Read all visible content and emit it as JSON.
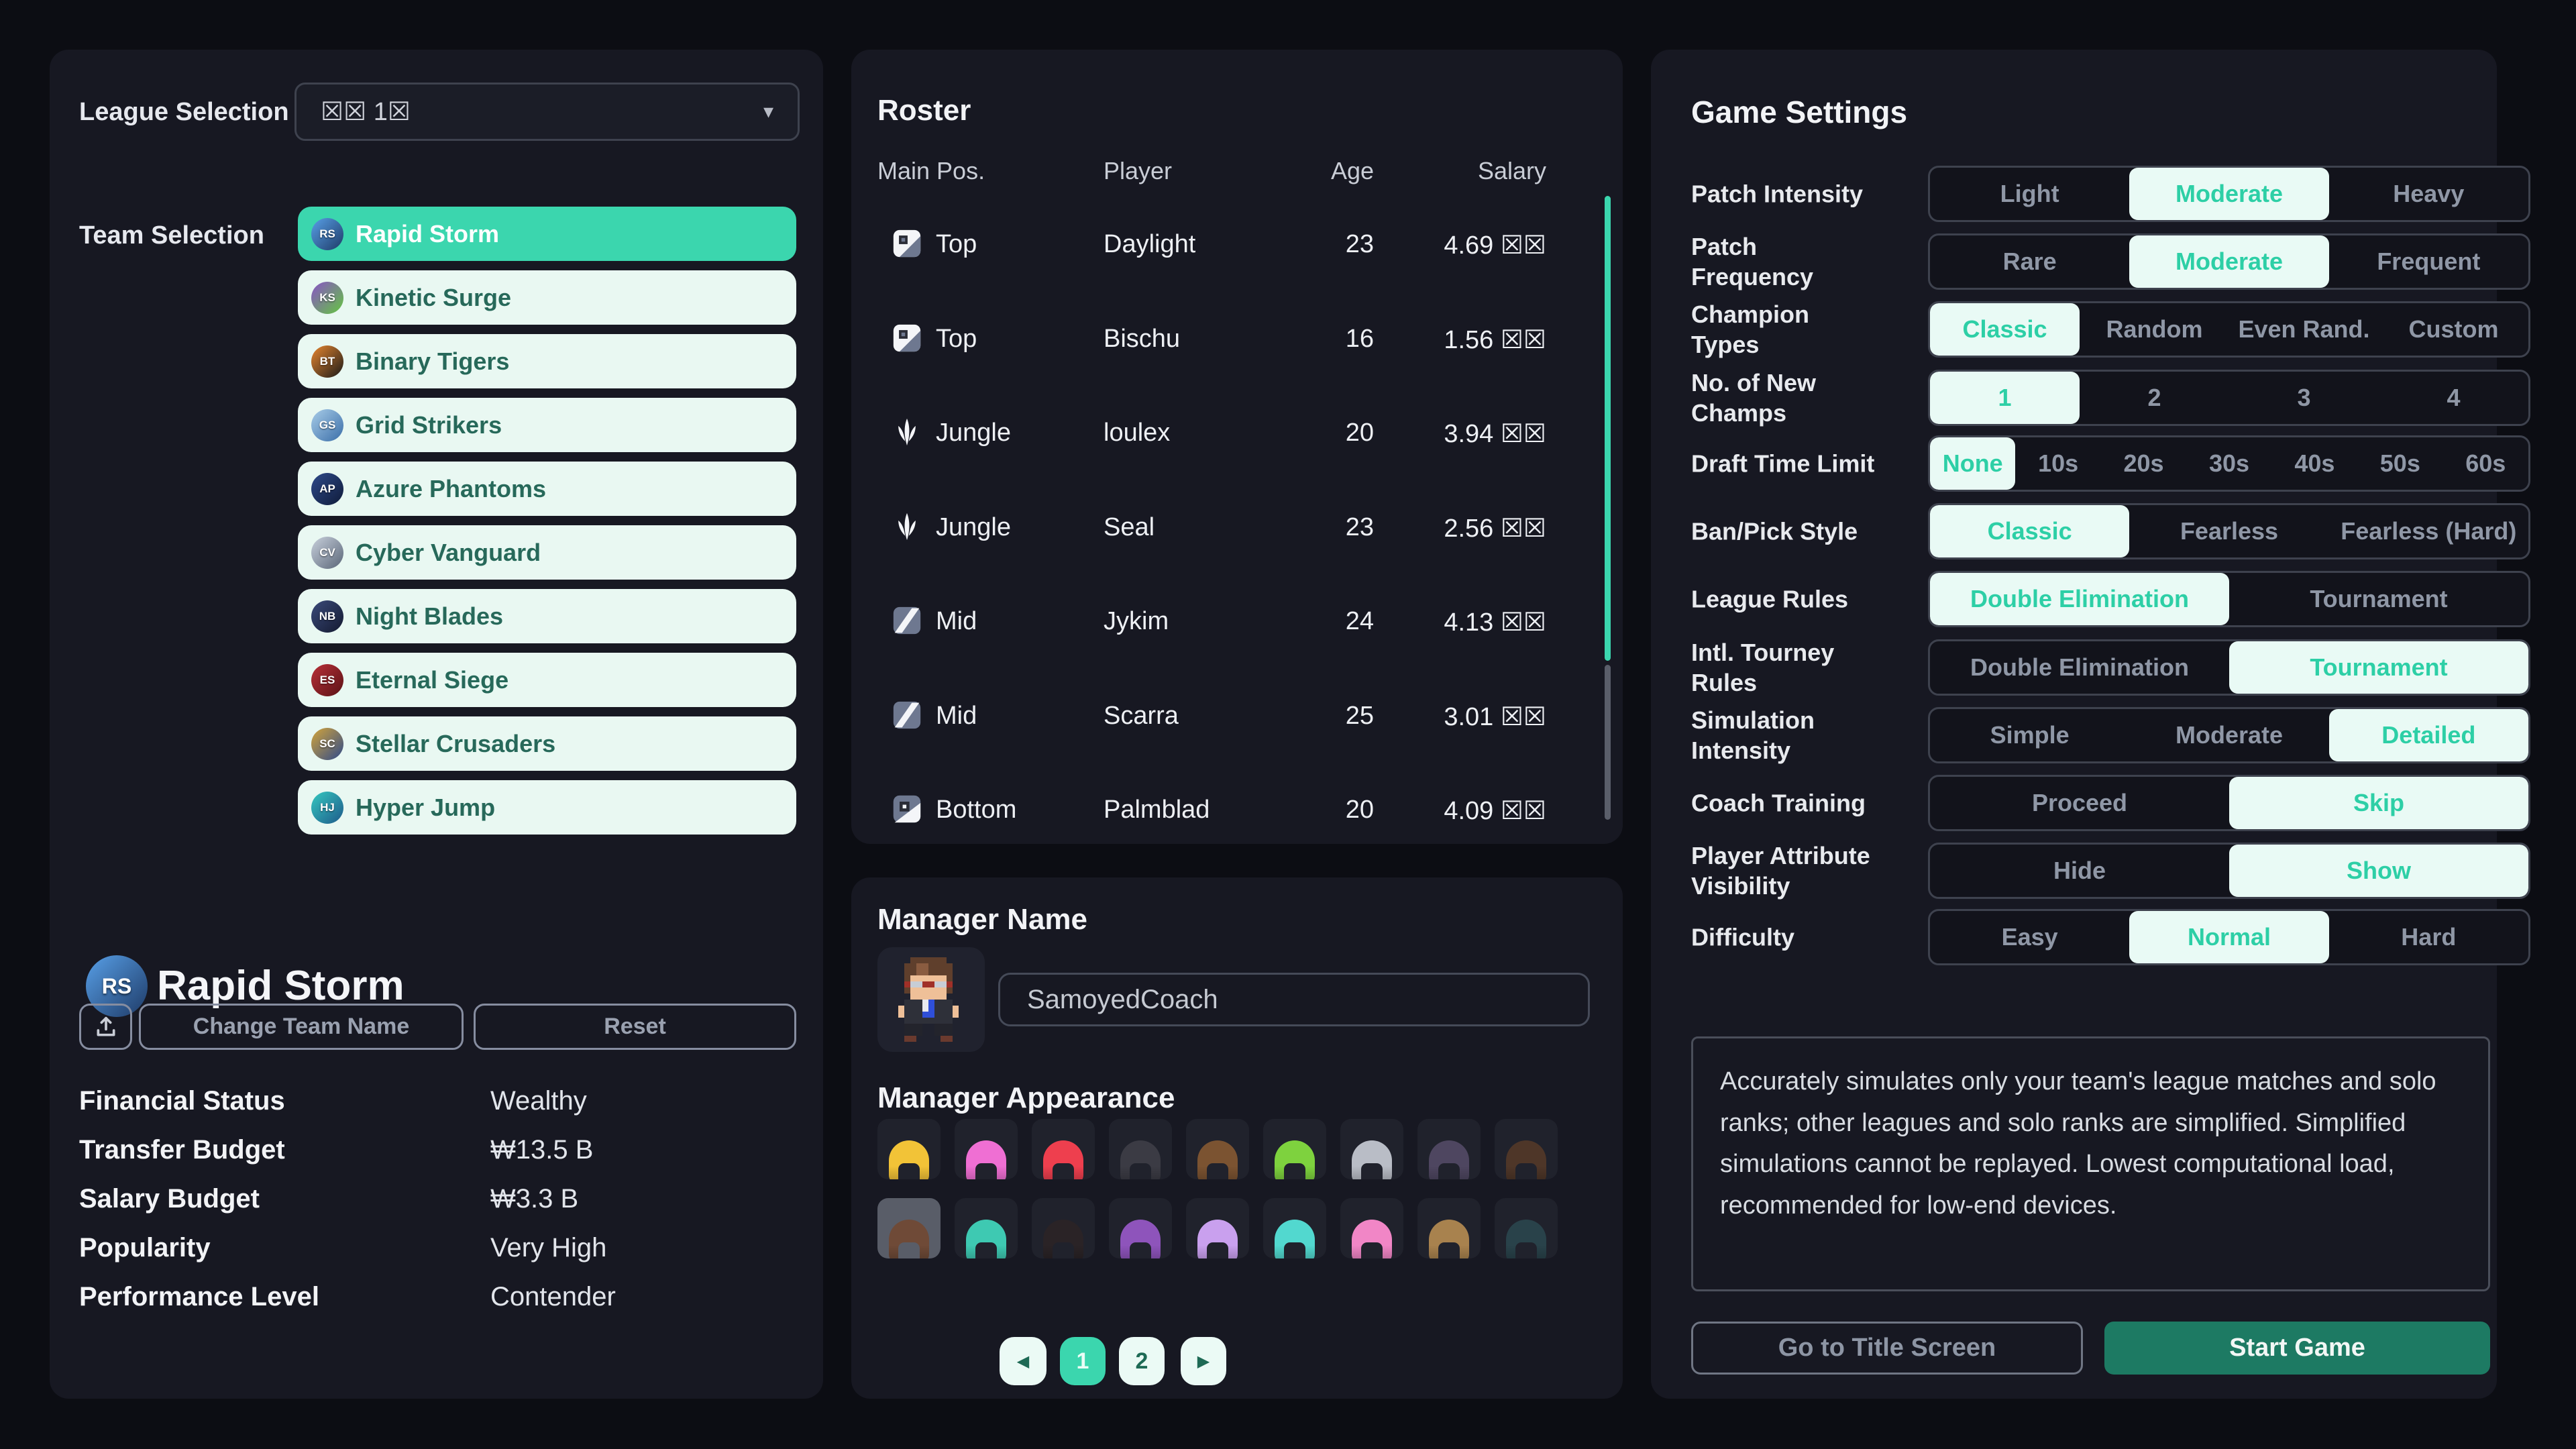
{
  "colors": {
    "accent_teal": "#3bd6ae",
    "selected_text_teal": "#2dcfa6",
    "pill_bg": "#e9faf5",
    "team_btn_bg": "#e9f8f2",
    "team_btn_text": "#27695a",
    "start_game_bg": "#1d7a63",
    "panel_bg": "#171822",
    "page_bg": "#0c0d13"
  },
  "left_panel": {
    "league": {
      "label": "League Selection",
      "value": "☒☒ 1☒"
    },
    "team_selection_label": "Team Selection",
    "teams": [
      {
        "name": "Rapid Storm",
        "initials": "RS",
        "c1": "#58a0e8",
        "c2": "#1e3a66",
        "selected": true
      },
      {
        "name": "Kinetic Surge",
        "initials": "KS",
        "c1": "#8a52c8",
        "c2": "#63c73f",
        "selected": false
      },
      {
        "name": "Binary Tigers",
        "initials": "BT",
        "c1": "#e8862e",
        "c2": "#1a1a1a",
        "selected": false
      },
      {
        "name": "Grid Strikers",
        "initials": "GS",
        "c1": "#a8cce8",
        "c2": "#3a6ea8",
        "selected": false
      },
      {
        "name": "Azure Phantoms",
        "initials": "AP",
        "c1": "#2e4a8a",
        "c2": "#101c3a",
        "selected": false
      },
      {
        "name": "Cyber Vanguard",
        "initials": "CV",
        "c1": "#c8d0dc",
        "c2": "#5a6678",
        "selected": false
      },
      {
        "name": "Night Blades",
        "initials": "NB",
        "c1": "#3a4a7a",
        "c2": "#141a30",
        "selected": false
      },
      {
        "name": "Eternal Siege",
        "initials": "ES",
        "c1": "#b83038",
        "c2": "#5a1216",
        "selected": false
      },
      {
        "name": "Stellar Crusaders",
        "initials": "SC",
        "c1": "#d4a53a",
        "c2": "#2e4a8a",
        "selected": false
      },
      {
        "name": "Hyper Jump",
        "initials": "HJ",
        "c1": "#35c8c0",
        "c2": "#1e5a8a",
        "selected": false
      }
    ],
    "team_info": {
      "name": "Rapid Storm",
      "initials": "RS",
      "change_team_btn": "Change Team Name",
      "reset_btn": "Reset",
      "stats": [
        {
          "label": "Financial Status",
          "value": "Wealthy"
        },
        {
          "label": "Transfer Budget",
          "value": "₩13.5 B"
        },
        {
          "label": "Salary Budget",
          "value": "₩3.3 B"
        },
        {
          "label": "Popularity",
          "value": "Very High"
        },
        {
          "label": "Performance Level",
          "value": "Contender"
        }
      ]
    }
  },
  "roster": {
    "title": "Roster",
    "columns": [
      "Main Pos.",
      "Player",
      "Age",
      "Salary"
    ],
    "rows": [
      {
        "pos": "Top",
        "icon": "top",
        "player": "Daylight",
        "age": "23",
        "salary": "4.69 ☒☒"
      },
      {
        "pos": "Top",
        "icon": "top",
        "player": "Bischu",
        "age": "16",
        "salary": "1.56 ☒☒"
      },
      {
        "pos": "Jungle",
        "icon": "jungle",
        "player": "loulex",
        "age": "20",
        "salary": "3.94 ☒☒"
      },
      {
        "pos": "Jungle",
        "icon": "jungle",
        "player": "Seal",
        "age": "23",
        "salary": "2.56 ☒☒"
      },
      {
        "pos": "Mid",
        "icon": "mid",
        "player": "Jykim",
        "age": "24",
        "salary": "4.13 ☒☒"
      },
      {
        "pos": "Mid",
        "icon": "mid",
        "player": "Scarra",
        "age": "25",
        "salary": "3.01 ☒☒"
      },
      {
        "pos": "Bottom",
        "icon": "bottom",
        "player": "Palmblad",
        "age": "20",
        "salary": "4.09 ☒☒"
      }
    ]
  },
  "manager": {
    "name_label": "Manager Name",
    "name_value": "SamoyedCoach",
    "appearance_label": "Manager Appearance",
    "hairs": [
      {
        "color": "#f2c337",
        "selected": false
      },
      {
        "color": "#ef6fd3",
        "selected": false
      },
      {
        "color": "#ee3f4e",
        "selected": false
      },
      {
        "color": "#3b3b44",
        "selected": false
      },
      {
        "color": "#7b5331",
        "selected": false
      },
      {
        "color": "#7ed23e",
        "selected": false
      },
      {
        "color": "#b9bdc6",
        "selected": false
      },
      {
        "color": "#4e4660",
        "selected": false
      },
      {
        "color": "#4e3628",
        "selected": false
      },
      {
        "color": "#6f4a37",
        "selected": true
      },
      {
        "color": "#3ec9b2",
        "selected": false
      },
      {
        "color": "#2a2326",
        "selected": false
      },
      {
        "color": "#8e54bb",
        "selected": false
      },
      {
        "color": "#c9a0ee",
        "selected": false
      },
      {
        "color": "#52d8cf",
        "selected": false
      },
      {
        "color": "#f186c6",
        "selected": false
      },
      {
        "color": "#a8824e",
        "selected": false
      },
      {
        "color": "#29424a",
        "selected": false
      }
    ],
    "pagination": {
      "prev": "◀",
      "pages": [
        "1",
        "2"
      ],
      "active": "1",
      "next": "▶"
    }
  },
  "settings": {
    "title": "Game Settings",
    "rows": [
      {
        "label": "Patch Intensity",
        "options": [
          "Light",
          "Moderate",
          "Heavy"
        ],
        "selected": 1
      },
      {
        "label": "Patch Frequency",
        "options": [
          "Rare",
          "Moderate",
          "Frequent"
        ],
        "selected": 1
      },
      {
        "label": "Champion Types",
        "options": [
          "Classic",
          "Random",
          "Even Rand.",
          "Custom"
        ],
        "selected": 0
      },
      {
        "label": "No. of New Champs",
        "options": [
          "1",
          "2",
          "3",
          "4"
        ],
        "selected": 0
      },
      {
        "label": "Draft Time Limit",
        "options": [
          "None",
          "10s",
          "20s",
          "30s",
          "40s",
          "50s",
          "60s"
        ],
        "selected": 0
      },
      {
        "label": "Ban/Pick Style",
        "options": [
          "Classic",
          "Fearless",
          "Fearless (Hard)"
        ],
        "selected": 0
      },
      {
        "label": "League Rules",
        "options": [
          "Double Elimination",
          "Tournament"
        ],
        "selected": 0
      },
      {
        "label": "Intl. Tourney Rules",
        "options": [
          "Double Elimination",
          "Tournament"
        ],
        "selected": 1
      },
      {
        "label": "Simulation Intensity",
        "options": [
          "Simple",
          "Moderate",
          "Detailed"
        ],
        "selected": 2
      },
      {
        "label": "Coach Training",
        "options": [
          "Proceed",
          "Skip"
        ],
        "selected": 1
      },
      {
        "label": "Player Attribute Visibility",
        "options": [
          "Hide",
          "Show"
        ],
        "selected": 1
      },
      {
        "label": "Difficulty",
        "options": [
          "Easy",
          "Normal",
          "Hard"
        ],
        "selected": 1
      }
    ],
    "description": "Accurately simulates only your team's league matches and solo ranks; other leagues and solo ranks are simplified. Simplified simulations cannot be replayed. Lowest computational load, recommended for low-end devices.",
    "title_screen_btn": "Go to Title Screen",
    "start_btn": "Start Game"
  }
}
